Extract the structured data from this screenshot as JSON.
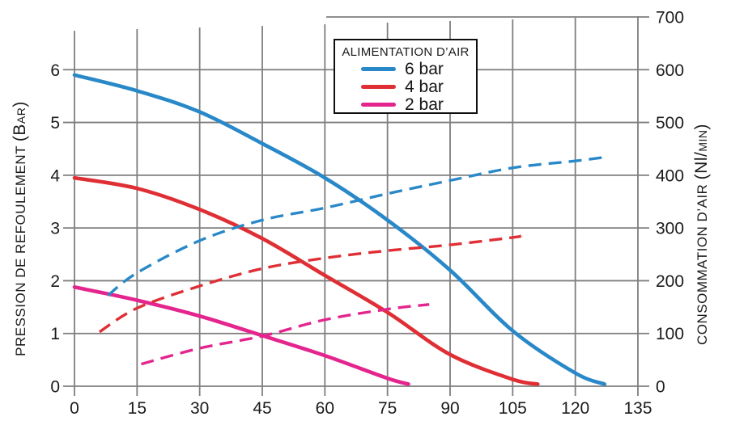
{
  "colors": {
    "background": "#ffffff",
    "grid": "#7e7e7e",
    "text": "#1b1b1b",
    "blue_6bar": "#2988c8",
    "red_4bar": "#df2f35",
    "magenta_2bar": "#e4258d"
  },
  "chart_data": {
    "type": "line",
    "title": "",
    "grid": "on",
    "legend_position": "top-center-inside",
    "x_axis": {
      "label": "",
      "min": 0,
      "max": 135,
      "step": 15,
      "ticks": [
        0,
        15,
        30,
        45,
        60,
        75,
        90,
        105,
        120,
        135
      ]
    },
    "y_left": {
      "label": "PRESSION DE REFOULEMENT (BAR)",
      "label_parts": [
        {
          "t": "PRESSION DE REFOULEMENT ",
          "s": 17
        },
        {
          "t": "(B",
          "s": 21
        },
        {
          "t": "AR",
          "s": 14
        },
        {
          "t": ")",
          "s": 21
        }
      ],
      "min": 0,
      "max": 7,
      "ticks": [
        0,
        1,
        2,
        3,
        4,
        5,
        6
      ]
    },
    "y_right": {
      "label": "CONSOMMATION D’AIR (Nl/MIN)",
      "label_parts": [
        {
          "t": "CONSOMMATION D’AIR ",
          "s": 17
        },
        {
          "t": "(Nl/",
          "s": 21
        },
        {
          "t": "MIN",
          "s": 14
        },
        {
          "t": ")",
          "s": 21
        }
      ],
      "min": 0,
      "max": 700,
      "ticks": [
        0,
        100,
        200,
        300,
        400,
        500,
        600,
        700
      ]
    },
    "legend": {
      "title": "ALIMENTATION D’AIR",
      "items": [
        {
          "label": "6 bar",
          "color": "#2988c8"
        },
        {
          "label": "4 bar",
          "color": "#df2f35"
        },
        {
          "label": "2 bar",
          "color": "#e4258d"
        }
      ]
    },
    "series": [
      {
        "name": "6 bar pression",
        "style": "solid",
        "axis": "left",
        "color": "#2988c8",
        "points": [
          [
            0,
            5.9
          ],
          [
            15,
            5.6
          ],
          [
            30,
            5.2
          ],
          [
            45,
            4.6
          ],
          [
            60,
            3.95
          ],
          [
            75,
            3.15
          ],
          [
            90,
            2.2
          ],
          [
            105,
            1.05
          ],
          [
            120,
            0.25
          ],
          [
            127,
            0.04
          ]
        ]
      },
      {
        "name": "4 bar pression",
        "style": "solid",
        "axis": "left",
        "color": "#df2f35",
        "points": [
          [
            0,
            3.95
          ],
          [
            15,
            3.75
          ],
          [
            30,
            3.35
          ],
          [
            45,
            2.8
          ],
          [
            60,
            2.1
          ],
          [
            75,
            1.4
          ],
          [
            90,
            0.6
          ],
          [
            105,
            0.13
          ],
          [
            111,
            0.04
          ]
        ]
      },
      {
        "name": "2 bar pression",
        "style": "solid",
        "axis": "left",
        "color": "#e4258d",
        "points": [
          [
            0,
            1.88
          ],
          [
            15,
            1.63
          ],
          [
            30,
            1.33
          ],
          [
            45,
            0.96
          ],
          [
            60,
            0.58
          ],
          [
            75,
            0.15
          ],
          [
            80,
            0.04
          ]
        ]
      },
      {
        "name": "6 bar consommation",
        "style": "dashed",
        "axis": "right",
        "color": "#2988c8",
        "points": [
          [
            8,
            172
          ],
          [
            15,
            215
          ],
          [
            30,
            276
          ],
          [
            45,
            315
          ],
          [
            60,
            338
          ],
          [
            75,
            365
          ],
          [
            90,
            390
          ],
          [
            105,
            414
          ],
          [
            120,
            427
          ],
          [
            127,
            434
          ]
        ]
      },
      {
        "name": "4 bar consommation",
        "style": "dashed",
        "axis": "right",
        "color": "#df2f35",
        "points": [
          [
            6,
            103
          ],
          [
            15,
            148
          ],
          [
            30,
            190
          ],
          [
            45,
            223
          ],
          [
            60,
            243
          ],
          [
            75,
            257
          ],
          [
            90,
            268
          ],
          [
            105,
            282
          ],
          [
            107,
            285
          ]
        ]
      },
      {
        "name": "2 bar consommation",
        "style": "dashed",
        "axis": "right",
        "color": "#e4258d",
        "points": [
          [
            16,
            42
          ],
          [
            30,
            72
          ],
          [
            45,
            95
          ],
          [
            60,
            126
          ],
          [
            75,
            146
          ],
          [
            85,
            155
          ]
        ]
      }
    ]
  }
}
